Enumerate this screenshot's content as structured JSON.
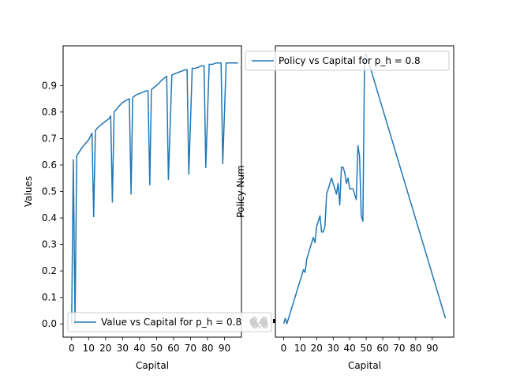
{
  "chart_data": [
    {
      "type": "line",
      "xlabel": "Capital",
      "ylabel": "Values",
      "xlim": [
        -5,
        100
      ],
      "ylim": [
        -0.05,
        1.05
      ],
      "x_ticks": [
        0,
        10,
        20,
        30,
        40,
        50,
        60,
        70,
        80,
        90
      ],
      "y_ticks": [
        0.0,
        0.1,
        0.2,
        0.3,
        0.4,
        0.5,
        0.6,
        0.7,
        0.8,
        0.9
      ],
      "y_tick_labels": [
        "0.0",
        "0.1",
        "0.2",
        "0.3",
        "0.4",
        "0.5",
        "0.6",
        "0.7",
        "0.8",
        "0.9"
      ],
      "legend_location": "lower-left",
      "color": "#1f77b4",
      "series": [
        {
          "name": "Value vs Capital for p_h = 0.8",
          "x": [
            0,
            1,
            2,
            3,
            4,
            6,
            8,
            10,
            12,
            13,
            14,
            16,
            18,
            20,
            22,
            23,
            24,
            25,
            27,
            29,
            31,
            34,
            35,
            36,
            38,
            40,
            42,
            44,
            45,
            46,
            47,
            49,
            51,
            53,
            55,
            56,
            57,
            59,
            61,
            63,
            65,
            67,
            68,
            69,
            71,
            73,
            75,
            77,
            78,
            79,
            81,
            83,
            85,
            87,
            88,
            89,
            91,
            93,
            95,
            97,
            98
          ],
          "y": [
            0.0,
            0.62,
            0.0,
            0.635,
            0.645,
            0.665,
            0.68,
            0.695,
            0.72,
            0.405,
            0.73,
            0.745,
            0.755,
            0.765,
            0.775,
            0.785,
            0.46,
            0.8,
            0.815,
            0.83,
            0.84,
            0.85,
            0.49,
            0.855,
            0.865,
            0.87,
            0.875,
            0.88,
            0.88,
            0.525,
            0.885,
            0.895,
            0.905,
            0.92,
            0.93,
            0.935,
            0.545,
            0.94,
            0.945,
            0.95,
            0.955,
            0.96,
            0.96,
            0.565,
            0.965,
            0.965,
            0.97,
            0.975,
            0.975,
            0.59,
            0.98,
            0.98,
            0.985,
            0.985,
            0.985,
            0.605,
            0.985,
            0.985,
            0.985,
            0.985,
            0.985
          ]
        }
      ]
    },
    {
      "type": "line",
      "xlabel": "Capital",
      "ylabel": "Policy Num",
      "xlim": [
        -5,
        103
      ],
      "ylim": [
        -0.05,
        1.03
      ],
      "x_ticks": [
        0,
        10,
        20,
        30,
        40,
        50,
        60,
        70,
        80,
        90
      ],
      "legend_location": "upper-left",
      "color": "#1f77b4",
      "series": [
        {
          "name": "Policy vs Capital for p_h = 0.8",
          "x": [
            0,
            1,
            2,
            3,
            4,
            5,
            6,
            7,
            8,
            9,
            10,
            11,
            12,
            13,
            14,
            15,
            16,
            17,
            18,
            19,
            20,
            21,
            22,
            23,
            24,
            25,
            26,
            27,
            28,
            29,
            30,
            31,
            32,
            33,
            34,
            35,
            36,
            37,
            38,
            39,
            40,
            41,
            42,
            43,
            44,
            45,
            46,
            47,
            48,
            49,
            50,
            98
          ],
          "y": [
            0.0,
            0.02,
            0.0,
            0.02,
            0.04,
            0.06,
            0.08,
            0.1,
            0.12,
            0.14,
            0.16,
            0.18,
            0.2,
            0.19,
            0.24,
            0.26,
            0.28,
            0.3,
            0.32,
            0.3,
            0.36,
            0.38,
            0.4,
            0.34,
            0.34,
            0.36,
            0.48,
            0.5,
            0.52,
            0.54,
            0.52,
            0.5,
            0.48,
            0.52,
            0.44,
            0.58,
            0.58,
            0.56,
            0.52,
            0.54,
            0.5,
            0.5,
            0.5,
            0.48,
            0.46,
            0.66,
            0.62,
            0.4,
            0.38,
            0.98,
            1.0,
            0.02
          ]
        }
      ]
    }
  ],
  "overlap_text": "0.0"
}
